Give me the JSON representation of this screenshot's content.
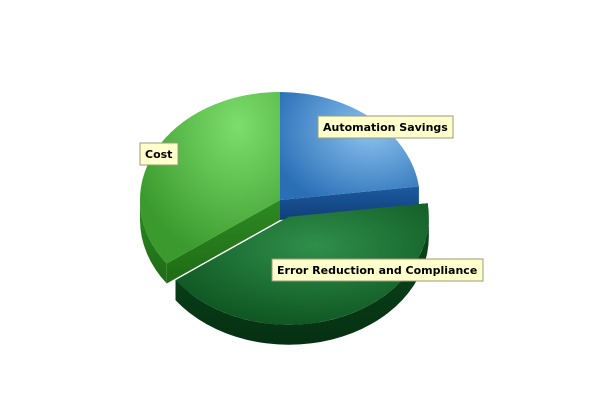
{
  "chart_data": {
    "type": "pie",
    "style": "3d",
    "slices": [
      {
        "label": "Automation Savings",
        "value": 23,
        "color": "#2f78c4"
      },
      {
        "label": "Error Reduction and Compliance",
        "value": 42,
        "color": "#0f6a2b",
        "exploded": true
      },
      {
        "label": "Cost",
        "value": 35,
        "color": "#3da832"
      }
    ],
    "title": "",
    "legend": "none"
  }
}
